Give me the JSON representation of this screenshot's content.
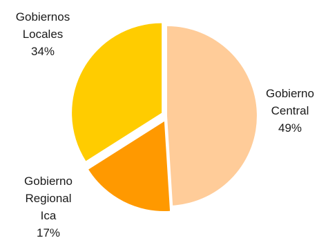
{
  "chart_data": {
    "type": "pie",
    "slices": [
      {
        "label_lines": [
          "Gobierno",
          "Central"
        ],
        "value": 49,
        "value_label": "49%",
        "color": "#ffcc99",
        "exploded": false
      },
      {
        "label_lines": [
          "Gobierno",
          "Regional",
          "Ica"
        ],
        "value": 17,
        "value_label": "17%",
        "color": "#ff9900",
        "exploded": true
      },
      {
        "label_lines": [
          "Gobiernos",
          "Locales"
        ],
        "value": 34,
        "value_label": "34%",
        "color": "#ffcc00",
        "exploded": true
      }
    ],
    "start_angle": "12 o'clock",
    "direction": "clockwise",
    "legend": "none"
  }
}
